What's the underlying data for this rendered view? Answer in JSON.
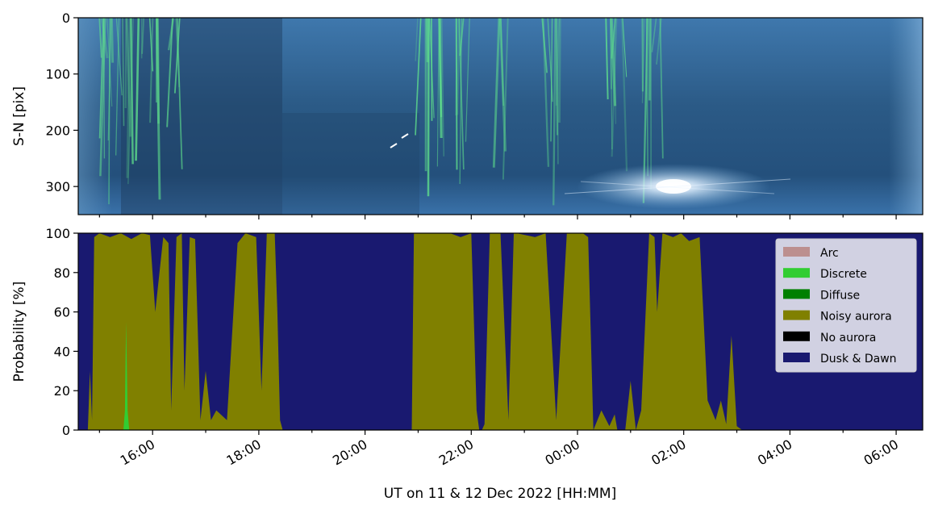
{
  "figure": {
    "xlabel": "UT on 11 & 12 Dec 2022 [HH:MM]"
  },
  "chart_data": [
    {
      "type": "heatmap",
      "description_of_image": "keogram image (all-sky camera south-north slice over time), colored blue with green aurora streaks",
      "ylabel": "S-N [pix]",
      "yticks": [
        0,
        100,
        200,
        300
      ],
      "ylim": [
        350,
        0
      ],
      "colors": {
        "background": "#2a5a8a",
        "dark": "#1c3c5c",
        "aurora": "#5fe08c",
        "moon": "#e8f4ff"
      },
      "aurora_bands_hours": [
        [
          14.95,
          15.5
        ],
        [
          15.5,
          16.1
        ],
        [
          16.35,
          16.6
        ],
        [
          20.95,
          21.45
        ],
        [
          21.7,
          22.0
        ],
        [
          22.5,
          22.7
        ],
        [
          23.3,
          23.7
        ],
        [
          0.5,
          0.9
        ],
        [
          1.2,
          1.6
        ]
      ],
      "bright_spot": {
        "x_hour": 1.75,
        "y_pix": 300
      }
    },
    {
      "type": "area",
      "ylabel": "Probability [%]",
      "ylim": [
        0,
        100
      ],
      "yticks": [
        0,
        20,
        40,
        60,
        80,
        100
      ],
      "x_range_hours": [
        14.6,
        30.5
      ],
      "xticks": [
        16,
        18,
        20,
        22,
        24,
        26,
        28,
        30
      ],
      "xtick_labels": [
        "16:00",
        "18:00",
        "20:00",
        "22:00",
        "00:00",
        "02:00",
        "04:00",
        "06:00"
      ],
      "legend": {
        "placement": "top-right",
        "entries": [
          {
            "label": "Arc",
            "color": "#bc8f8f"
          },
          {
            "label": "Discrete",
            "color": "#32cd32"
          },
          {
            "label": "Diffuse",
            "color": "#008000"
          },
          {
            "label": "Noisy aurora",
            "color": "#808000"
          },
          {
            "label": "No aurora",
            "color": "#000000"
          },
          {
            "label": "Dusk & Dawn",
            "color": "#191970"
          }
        ]
      },
      "series": [
        {
          "name": "Dusk & Dawn",
          "color": "#191970",
          "note": "fills remainder to 100%"
        },
        {
          "name": "Noisy aurora",
          "color": "#808000",
          "x": [
            14.6,
            14.78,
            14.82,
            14.86,
            14.9,
            15.0,
            15.2,
            15.4,
            15.6,
            15.8,
            15.95,
            16.05,
            16.2,
            16.3,
            16.35,
            16.45,
            16.55,
            16.6,
            16.7,
            16.8,
            16.9,
            17.0,
            17.1,
            17.2,
            17.4,
            17.6,
            17.75,
            17.95,
            18.05,
            18.15,
            18.3,
            18.35,
            18.4,
            18.45,
            20.88,
            20.92,
            21.0,
            21.2,
            21.45,
            21.6,
            21.8,
            22.0,
            22.1,
            22.15,
            22.2,
            22.25,
            22.35,
            22.55,
            22.7,
            22.8,
            22.85,
            23.2,
            23.4,
            23.6,
            23.8,
            24.1,
            24.2,
            24.3,
            24.45,
            24.6,
            24.7,
            24.75,
            24.9,
            25.0,
            25.1,
            25.2,
            25.35,
            25.45,
            25.5,
            25.6,
            25.8,
            25.95,
            26.1,
            26.3,
            26.45,
            26.6,
            26.7,
            26.8,
            26.9,
            27.0,
            27.1,
            27.2,
            30.5
          ],
          "values": [
            0,
            0,
            30,
            5,
            98,
            100,
            98,
            100,
            97,
            100,
            99,
            60,
            98,
            95,
            10,
            98,
            100,
            20,
            98,
            97,
            5,
            30,
            5,
            10,
            5,
            95,
            100,
            98,
            20,
            100,
            100,
            60,
            5,
            0,
            0,
            100,
            100,
            100,
            100,
            100,
            98,
            100,
            10,
            0,
            0,
            3,
            100,
            100,
            5,
            100,
            100,
            98,
            100,
            5,
            100,
            100,
            98,
            0,
            10,
            2,
            8,
            0,
            0,
            25,
            0,
            10,
            100,
            98,
            60,
            100,
            98,
            100,
            96,
            98,
            15,
            5,
            15,
            3,
            48,
            2,
            0,
            0,
            0
          ]
        },
        {
          "name": "Discrete",
          "color": "#32cd32",
          "x": [
            15.45,
            15.48,
            15.5,
            15.53,
            15.56
          ],
          "values": [
            0,
            10,
            55,
            10,
            0
          ]
        }
      ]
    }
  ]
}
